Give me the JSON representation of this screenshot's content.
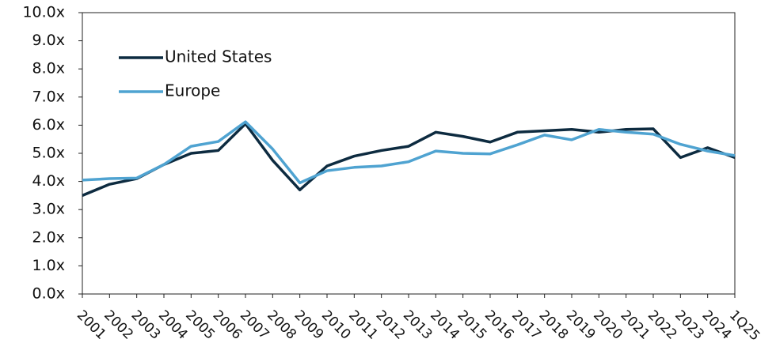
{
  "chart_data": {
    "type": "line",
    "categories": [
      "2001",
      "2002",
      "2003",
      "2004",
      "2005",
      "2006",
      "2007",
      "2008",
      "2009",
      "2010",
      "2011",
      "2012",
      "2013",
      "2014",
      "2015",
      "2016",
      "2017",
      "2018",
      "2019",
      "2020",
      "2021",
      "2022",
      "2023",
      "2024",
      "1Q25"
    ],
    "series": [
      {
        "name": "United States",
        "color": "#0d2b40",
        "values": [
          3.5,
          3.9,
          4.1,
          4.6,
          5.0,
          5.1,
          6.05,
          4.75,
          3.7,
          4.55,
          4.9,
          5.1,
          5.25,
          5.75,
          5.6,
          5.4,
          5.75,
          5.8,
          5.85,
          5.75,
          5.85,
          5.87,
          4.85,
          5.2,
          4.85
        ]
      },
      {
        "name": "Europe",
        "color": "#4fa3d1",
        "values": [
          4.05,
          4.1,
          4.12,
          4.6,
          5.25,
          5.42,
          6.12,
          5.15,
          3.95,
          4.38,
          4.5,
          4.55,
          4.7,
          5.08,
          5.0,
          4.98,
          5.3,
          5.65,
          5.48,
          5.85,
          5.75,
          5.68,
          5.32,
          5.08,
          4.92
        ]
      }
    ],
    "ylim": [
      0,
      10
    ],
    "yticks": [
      {
        "value": 0,
        "label": "0.0x"
      },
      {
        "value": 1,
        "label": "1.0x"
      },
      {
        "value": 2,
        "label": "2.0x"
      },
      {
        "value": 3,
        "label": "3.0x"
      },
      {
        "value": 4,
        "label": "4.0x"
      },
      {
        "value": 5,
        "label": "5.0x"
      },
      {
        "value": 6,
        "label": "6.0x"
      },
      {
        "value": 7,
        "label": "7.0x"
      },
      {
        "value": 8,
        "label": "8.0x"
      },
      {
        "value": 9,
        "label": "9.0x"
      },
      {
        "value": 10,
        "label": "10.0x"
      }
    ],
    "grid": false,
    "legend": "upper left"
  }
}
